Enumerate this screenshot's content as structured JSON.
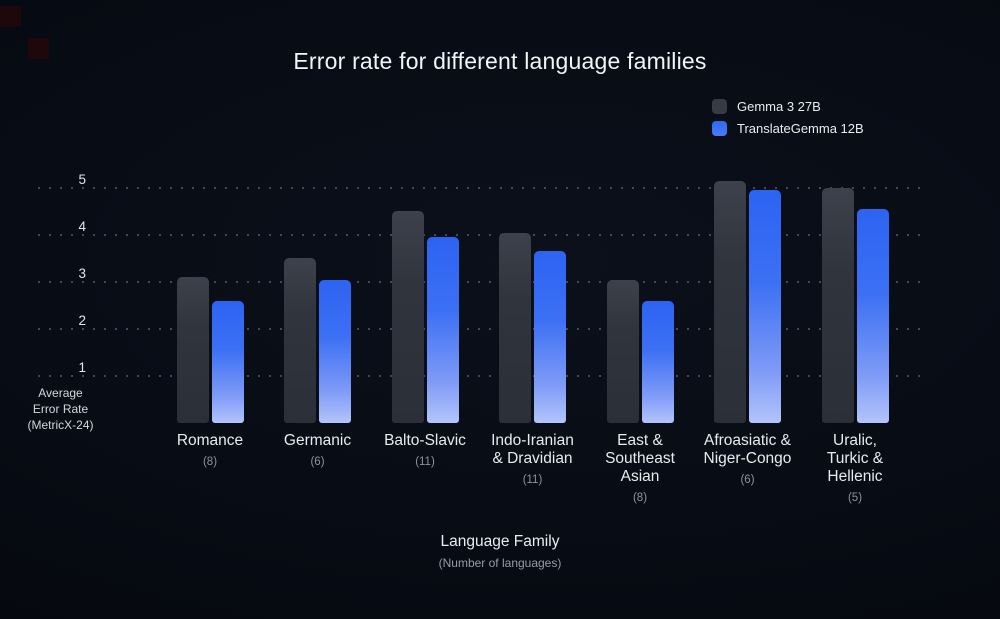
{
  "title": "Error rate for different language families",
  "legend": {
    "items": [
      {
        "label": "Gemma 3 27B",
        "color": "#363b44"
      },
      {
        "label": "TranslateGemma 12B",
        "color": "#2e68f5",
        "color2": "#4a7bf7"
      }
    ]
  },
  "y_axis": {
    "label_lines": [
      "Average",
      "Error Rate",
      "(MetricX-24)"
    ]
  },
  "x_axis": {
    "label": "Language Family",
    "sublabel": "(Number of languages)"
  },
  "colors": {
    "background": "#070b13",
    "bar_gray": "#30343d",
    "bar_blue_top": "#2c63f2",
    "bar_blue_bottom": "#b3c4fa",
    "gridline": "#9ea8bc",
    "title_text": "#f2f4f7",
    "muted_text": "#8d939c"
  },
  "chart_data": {
    "type": "bar",
    "title": "Error rate for different language families",
    "categories": [
      "Romance",
      "Germanic",
      "Balto-Slavic",
      "Indo-Iranian & Dravidian",
      "East & Southeast Asian",
      "Afroasiatic & Niger-Congo",
      "Uralic, Turkic & Hellenic"
    ],
    "category_counts": [
      8,
      6,
      11,
      11,
      8,
      6,
      5
    ],
    "series": [
      {
        "name": "Gemma 3 27B",
        "color": "#30343d",
        "values": [
          3.1,
          3.5,
          4.5,
          4.05,
          3.05,
          5.15,
          5.0
        ]
      },
      {
        "name": "TranslateGemma 12B",
        "color": "#2e68f5",
        "values": [
          2.6,
          3.05,
          3.95,
          3.65,
          2.6,
          4.95,
          4.55
        ]
      }
    ],
    "xlabel": "Language Family",
    "xlabel_note": "(Number of languages)",
    "ylabel": "Average Error Rate (MetricX-24)",
    "yticks": [
      1,
      2,
      3,
      4,
      5
    ],
    "ylim": [
      0,
      5.5
    ],
    "grid": "horizontal-dotted",
    "legend_position": "top-right"
  }
}
